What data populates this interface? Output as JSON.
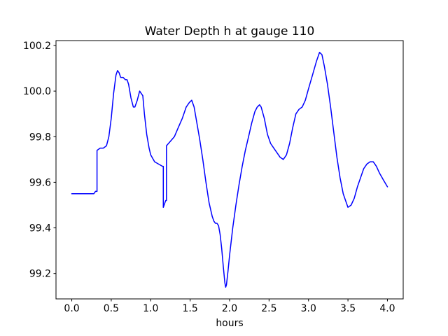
{
  "figure": {
    "background": "#ffffff"
  },
  "chart_data": {
    "type": "line",
    "title": "Water Depth h at gauge 110",
    "xlabel": "hours",
    "ylabel": "",
    "xlim": [
      -0.2,
      4.2
    ],
    "ylim": [
      99.0885,
      100.2215
    ],
    "grid": false,
    "legend": "none",
    "line_color": "#0000ff",
    "line_width": 1.5,
    "frame_color": "#000000",
    "xticks": [
      {
        "v": 0.0,
        "label": "0.0"
      },
      {
        "v": 0.5,
        "label": "0.5"
      },
      {
        "v": 1.0,
        "label": "1.0"
      },
      {
        "v": 1.5,
        "label": "1.5"
      },
      {
        "v": 2.0,
        "label": "2.0"
      },
      {
        "v": 2.5,
        "label": "2.5"
      },
      {
        "v": 3.0,
        "label": "3.0"
      },
      {
        "v": 3.5,
        "label": "3.5"
      },
      {
        "v": 4.0,
        "label": "4.0"
      }
    ],
    "yticks": [
      {
        "v": 99.2,
        "label": "99.2"
      },
      {
        "v": 99.4,
        "label": "99.4"
      },
      {
        "v": 99.6,
        "label": "99.6"
      },
      {
        "v": 99.8,
        "label": "99.8"
      },
      {
        "v": 100.0,
        "label": "100.0"
      },
      {
        "v": 100.2,
        "label": "100.2"
      }
    ],
    "series": [
      {
        "name": "h",
        "x": [
          0.0,
          0.1,
          0.2,
          0.28,
          0.3,
          0.32,
          0.32,
          0.36,
          0.4,
          0.44,
          0.47,
          0.5,
          0.53,
          0.56,
          0.58,
          0.6,
          0.62,
          0.65,
          0.68,
          0.7,
          0.72,
          0.75,
          0.78,
          0.8,
          0.83,
          0.86,
          0.88,
          0.9,
          0.92,
          0.95,
          0.98,
          1.0,
          1.05,
          1.1,
          1.15,
          1.16,
          1.16,
          1.19,
          1.2,
          1.2,
          1.25,
          1.3,
          1.35,
          1.4,
          1.45,
          1.49,
          1.52,
          1.55,
          1.58,
          1.62,
          1.66,
          1.7,
          1.74,
          1.78,
          1.8,
          1.82,
          1.84,
          1.86,
          1.88,
          1.9,
          1.92,
          1.94,
          1.95,
          1.96,
          1.98,
          2.0,
          2.04,
          2.08,
          2.12,
          2.16,
          2.2,
          2.24,
          2.28,
          2.32,
          2.35,
          2.38,
          2.4,
          2.44,
          2.48,
          2.52,
          2.56,
          2.6,
          2.64,
          2.68,
          2.72,
          2.76,
          2.8,
          2.84,
          2.88,
          2.92,
          2.96,
          3.0,
          3.05,
          3.1,
          3.14,
          3.17,
          3.2,
          3.24,
          3.28,
          3.32,
          3.36,
          3.4,
          3.44,
          3.48,
          3.5,
          3.54,
          3.58,
          3.62,
          3.66,
          3.7,
          3.74,
          3.78,
          3.82,
          3.86,
          3.9,
          3.95,
          4.0
        ],
        "y": [
          99.55,
          99.55,
          99.55,
          99.55,
          99.56,
          99.56,
          99.74,
          99.75,
          99.75,
          99.76,
          99.8,
          99.88,
          99.99,
          100.07,
          100.09,
          100.08,
          100.06,
          100.06,
          100.05,
          100.05,
          100.03,
          99.97,
          99.93,
          99.93,
          99.96,
          100.0,
          99.99,
          99.98,
          99.9,
          99.81,
          99.75,
          99.72,
          99.69,
          99.68,
          99.67,
          99.67,
          99.49,
          99.52,
          99.52,
          99.76,
          99.78,
          99.8,
          99.84,
          99.88,
          99.93,
          99.95,
          99.96,
          99.93,
          99.87,
          99.79,
          99.7,
          99.6,
          99.51,
          99.45,
          99.43,
          99.42,
          99.42,
          99.41,
          99.37,
          99.31,
          99.23,
          99.16,
          99.14,
          99.15,
          99.21,
          99.28,
          99.4,
          99.5,
          99.59,
          99.67,
          99.74,
          99.8,
          99.86,
          99.91,
          99.93,
          99.94,
          99.93,
          99.88,
          99.81,
          99.77,
          99.75,
          99.73,
          99.71,
          99.7,
          99.72,
          99.77,
          99.84,
          99.9,
          99.92,
          99.93,
          99.96,
          100.01,
          100.07,
          100.13,
          100.17,
          100.16,
          100.11,
          100.03,
          99.93,
          99.82,
          99.71,
          99.62,
          99.55,
          99.51,
          99.49,
          99.5,
          99.53,
          99.58,
          99.62,
          99.66,
          99.68,
          99.69,
          99.69,
          99.67,
          99.64,
          99.61,
          99.58
        ]
      }
    ]
  }
}
